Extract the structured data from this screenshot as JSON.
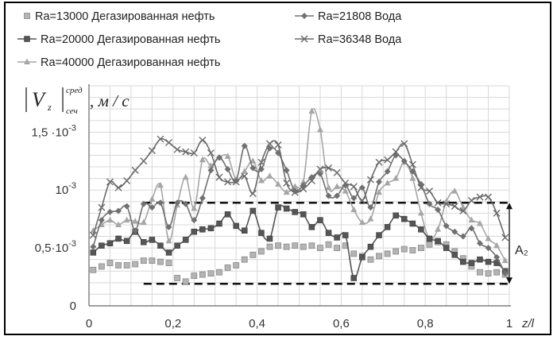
{
  "chart_data": {
    "type": "line",
    "ylabel": {
      "bars": "|V",
      "sub": "z",
      "sup": "сред",
      "sub2": "сеч",
      "unit": ", м / с"
    },
    "xlabel": "z/l",
    "xlim": [
      0,
      1
    ],
    "ylim": [
      0,
      0.0019
    ],
    "xticks": [
      {
        "v": 0,
        "label": "0"
      },
      {
        "v": 0.2,
        "label": "0,2"
      },
      {
        "v": 0.4,
        "label": "0,4"
      },
      {
        "v": 0.6,
        "label": "0,6"
      },
      {
        "v": 0.8,
        "label": "0,8"
      },
      {
        "v": 1,
        "label": "1"
      }
    ],
    "yticks": [
      {
        "v": 0,
        "base": "0",
        "exp": ""
      },
      {
        "v": 0.0005,
        "base": "0,5·10",
        "exp": "-3"
      },
      {
        "v": 0.001,
        "base": "10",
        "exp": "-3"
      },
      {
        "v": 0.0015,
        "base": "1,5 ·10",
        "exp": "-3"
      }
    ],
    "grid": true,
    "legend_position": "top",
    "annotation": {
      "label": "A₂",
      "y_top": 0.00089,
      "y_bottom": 0.00019
    },
    "series": [
      {
        "name": "Ra=13000 Дегазированная нефть",
        "marker": "square-light",
        "line": false,
        "color": "#b4b4b4",
        "x": [
          0.01,
          0.03,
          0.05,
          0.07,
          0.09,
          0.11,
          0.13,
          0.15,
          0.17,
          0.19,
          0.21,
          0.23,
          0.25,
          0.27,
          0.29,
          0.31,
          0.33,
          0.35,
          0.37,
          0.39,
          0.41,
          0.43,
          0.45,
          0.47,
          0.49,
          0.51,
          0.53,
          0.55,
          0.57,
          0.59,
          0.61,
          0.63,
          0.65,
          0.67,
          0.69,
          0.71,
          0.73,
          0.75,
          0.77,
          0.79,
          0.81,
          0.83,
          0.85,
          0.87,
          0.89,
          0.91,
          0.93,
          0.95,
          0.97,
          0.99
        ],
        "y": [
          0.00031,
          0.00034,
          0.00037,
          0.00035,
          0.00035,
          0.00036,
          0.00039,
          0.00039,
          0.00038,
          0.00037,
          0.00024,
          0.00021,
          0.00026,
          0.00027,
          0.00028,
          0.00029,
          0.00033,
          0.00035,
          0.0004,
          0.00044,
          0.00047,
          0.00051,
          0.00052,
          0.00051,
          0.00052,
          0.00051,
          0.00052,
          0.0005,
          0.00053,
          0.0005,
          0.00052,
          0.00045,
          0.00043,
          0.0004,
          0.00043,
          0.00045,
          0.00047,
          0.00049,
          0.00048,
          0.0005,
          0.00053,
          0.00055,
          0.00053,
          0.00047,
          0.00041,
          0.00034,
          0.00029,
          0.00028,
          0.00029,
          0.00027
        ]
      },
      {
        "name": "Ra=20000 Дегазированная нефть",
        "marker": "square-dark",
        "line": true,
        "color": "#555555",
        "x": [
          0.01,
          0.03,
          0.05,
          0.07,
          0.09,
          0.11,
          0.13,
          0.15,
          0.17,
          0.19,
          0.21,
          0.23,
          0.25,
          0.27,
          0.29,
          0.31,
          0.33,
          0.35,
          0.37,
          0.39,
          0.41,
          0.43,
          0.45,
          0.47,
          0.49,
          0.51,
          0.53,
          0.55,
          0.57,
          0.59,
          0.61,
          0.63,
          0.65,
          0.67,
          0.69,
          0.71,
          0.73,
          0.75,
          0.77,
          0.79,
          0.81,
          0.83,
          0.85,
          0.87,
          0.89,
          0.91,
          0.93,
          0.95,
          0.97,
          0.99
        ],
        "y": [
          0.00046,
          0.00052,
          0.00054,
          0.00058,
          0.00056,
          0.00064,
          0.00055,
          0.00057,
          0.00052,
          0.00046,
          0.00052,
          0.00057,
          0.00064,
          0.00066,
          0.00067,
          0.00071,
          0.00079,
          0.00069,
          0.00065,
          0.00082,
          0.00063,
          0.00058,
          0.00085,
          0.00084,
          0.00081,
          0.00079,
          0.00068,
          0.00074,
          0.00063,
          0.00059,
          0.00061,
          0.00024,
          0.00042,
          0.00051,
          0.00061,
          0.00068,
          0.00078,
          0.00075,
          0.00071,
          0.00066,
          0.00058,
          0.00056,
          0.0005,
          0.00044,
          0.00038,
          0.00037,
          0.0004,
          0.00038,
          0.00037,
          0.0003
        ]
      },
      {
        "name": "Ra=40000 Дегазированная нефть",
        "marker": "triangle",
        "line": true,
        "color": "#a6a6a6",
        "x": [
          0.01,
          0.03,
          0.05,
          0.07,
          0.09,
          0.11,
          0.13,
          0.15,
          0.17,
          0.19,
          0.21,
          0.23,
          0.25,
          0.27,
          0.29,
          0.31,
          0.33,
          0.35,
          0.37,
          0.39,
          0.41,
          0.43,
          0.45,
          0.47,
          0.49,
          0.51,
          0.53,
          0.55,
          0.57,
          0.59,
          0.61,
          0.63,
          0.65,
          0.67,
          0.69,
          0.71,
          0.73,
          0.75,
          0.77,
          0.79,
          0.81,
          0.83,
          0.85,
          0.87,
          0.89,
          0.91,
          0.93,
          0.95,
          0.97,
          0.99
        ],
        "y": [
          0.00065,
          0.0007,
          0.00074,
          0.0007,
          0.00074,
          0.00073,
          0.00072,
          0.00092,
          0.00104,
          0.00056,
          0.00087,
          0.00111,
          0.00084,
          0.00126,
          0.00121,
          0.00128,
          0.00129,
          0.00109,
          0.00116,
          0.00125,
          0.00108,
          0.00112,
          0.00105,
          0.00098,
          0.00103,
          0.00107,
          0.00168,
          0.00152,
          0.00102,
          0.00103,
          0.00099,
          0.00083,
          0.00072,
          0.00075,
          0.00098,
          0.00106,
          0.0011,
          0.00124,
          0.0011,
          0.0008,
          0.00058,
          0.00066,
          0.0009,
          0.00099,
          0.00085,
          0.00074,
          0.00071,
          0.00058,
          0.00052,
          0.00039
        ]
      },
      {
        "name": "Ra=21808 Вода",
        "marker": "diamond",
        "line": true,
        "color": "#707070",
        "x": [
          0.01,
          0.03,
          0.05,
          0.07,
          0.09,
          0.11,
          0.13,
          0.15,
          0.17,
          0.19,
          0.21,
          0.23,
          0.25,
          0.27,
          0.29,
          0.31,
          0.33,
          0.35,
          0.37,
          0.39,
          0.41,
          0.43,
          0.45,
          0.47,
          0.49,
          0.51,
          0.53,
          0.55,
          0.57,
          0.59,
          0.61,
          0.63,
          0.65,
          0.67,
          0.69,
          0.71,
          0.73,
          0.75,
          0.77,
          0.79,
          0.81,
          0.83,
          0.85,
          0.87,
          0.89,
          0.91,
          0.93,
          0.95,
          0.97,
          0.99
        ],
        "y": [
          0.00051,
          0.00074,
          0.00081,
          0.00082,
          0.00086,
          0.00065,
          0.00088,
          0.00085,
          0.00089,
          0.00068,
          0.00089,
          0.00088,
          0.00074,
          0.00093,
          0.00117,
          0.00128,
          0.00118,
          0.00108,
          0.00138,
          0.00119,
          0.00118,
          0.00136,
          0.00132,
          0.00117,
          0.00099,
          0.00104,
          0.00111,
          0.00114,
          0.00095,
          0.00095,
          0.00104,
          0.00093,
          0.00102,
          0.00085,
          0.00107,
          0.00116,
          0.0013,
          0.00125,
          0.00116,
          0.00105,
          0.00088,
          0.00083,
          0.00069,
          0.00064,
          0.0006,
          0.00067,
          0.00054,
          0.0005,
          0.00042,
          0.00028
        ]
      },
      {
        "name": "Ra=36348 Вода",
        "marker": "cross",
        "line": true,
        "color": "#6a6a6a",
        "x": [
          0.01,
          0.03,
          0.05,
          0.07,
          0.09,
          0.11,
          0.13,
          0.15,
          0.17,
          0.19,
          0.21,
          0.23,
          0.25,
          0.27,
          0.29,
          0.31,
          0.33,
          0.35,
          0.37,
          0.39,
          0.41,
          0.43,
          0.45,
          0.47,
          0.49,
          0.51,
          0.53,
          0.55,
          0.57,
          0.59,
          0.61,
          0.63,
          0.65,
          0.67,
          0.69,
          0.71,
          0.73,
          0.75,
          0.77,
          0.79,
          0.81,
          0.83,
          0.85,
          0.87,
          0.89,
          0.91,
          0.93,
          0.95,
          0.97,
          0.99
        ],
        "y": [
          0.00061,
          0.00085,
          0.00107,
          0.00102,
          0.00108,
          0.00117,
          0.00125,
          0.00134,
          0.00144,
          0.00141,
          0.00135,
          0.00133,
          0.00132,
          0.00143,
          0.00132,
          0.00111,
          0.00107,
          0.00107,
          0.00112,
          0.00097,
          0.00124,
          0.0014,
          0.00139,
          0.00106,
          0.00098,
          0.00101,
          0.00108,
          0.00118,
          0.00119,
          0.00115,
          0.00106,
          0.00103,
          0.00091,
          0.00109,
          0.00124,
          0.00126,
          0.00133,
          0.0014,
          0.00122,
          0.00102,
          0.00099,
          0.00089,
          0.00088,
          0.00086,
          0.00082,
          0.00091,
          0.00094,
          0.00094,
          0.0008,
          0.00059
        ]
      }
    ]
  }
}
